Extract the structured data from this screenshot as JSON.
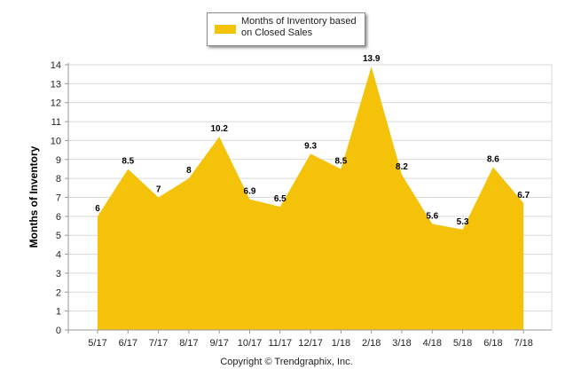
{
  "chart_data": {
    "type": "area",
    "categories": [
      "5/17",
      "6/17",
      "7/17",
      "8/17",
      "9/17",
      "10/17",
      "11/17",
      "12/17",
      "1/18",
      "2/18",
      "3/18",
      "4/18",
      "5/18",
      "6/18",
      "7/18"
    ],
    "series": [
      {
        "name": "Months of Inventory based on Closed Sales",
        "values": [
          6,
          8.5,
          7,
          8,
          10.2,
          6.9,
          6.5,
          9.3,
          8.5,
          13.9,
          8.2,
          5.6,
          5.3,
          8.6,
          6.7
        ]
      }
    ],
    "data_labels": [
      "6",
      "8.5",
      "7",
      "8",
      "10.2",
      "6.9",
      "6.5",
      "9.3",
      "8.5",
      "13.9",
      "8.2",
      "5.6",
      "5.3",
      "8.6",
      "6.7"
    ],
    "ylabel": "Months of Inventory",
    "xlabel": "",
    "ylim": [
      0,
      14
    ],
    "yticks": [
      0,
      1,
      2,
      3,
      4,
      5,
      6,
      7,
      8,
      9,
      10,
      11,
      12,
      13,
      14
    ],
    "grid": true,
    "legend_position": "top-center",
    "colors": {
      "fill": "#f5c20a",
      "grid": "#d9d9d9",
      "axis": "#999999"
    }
  },
  "legend": {
    "label": "Months of Inventory based on Closed Sales"
  },
  "footer": {
    "copyright": "Copyright © Trendgraphix, Inc."
  }
}
